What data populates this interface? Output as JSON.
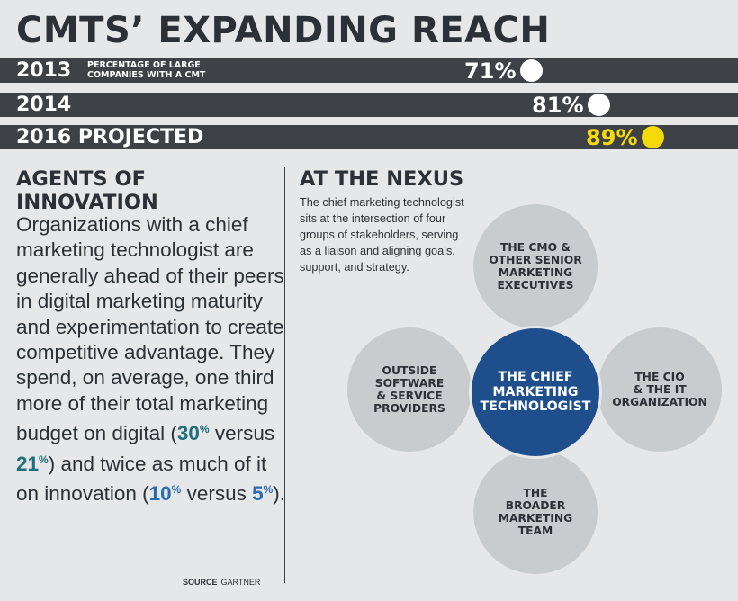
{
  "title": "CMTS’ EXPANDING REACH",
  "chart_data": {
    "type": "bar",
    "note": "PERCENTAGE OF LARGE COMPANIES WITH A CMT",
    "categories": [
      "2013",
      "2014",
      "2016 PROJECTED"
    ],
    "values": [
      71,
      81,
      89
    ],
    "value_labels": [
      "71%",
      "81%",
      "89%"
    ],
    "highlight_color": "#f5d90a",
    "marker_color": "#ffffff",
    "bar_color": "#3e4247"
  },
  "left": {
    "heading": "AGENTS OF INNOVATION",
    "body_1": "Organizations with a chief marketing technologist are generally ahead of their peers in digital marketing maturity and experimentation to create competitive advantage. They spend, on average, one third more of their total marketing budget on digital (",
    "stat_digital_cmt": "30",
    "connector_1": " versus ",
    "stat_digital_peers": "21",
    "body_2": ") and twice as much of it on innovation (",
    "stat_innov_cmt": "10",
    "connector_2": " versus ",
    "stat_innov_peers": "5",
    "body_3": ").",
    "percent_sign": "%"
  },
  "right": {
    "heading": "AT THE NEXUS",
    "body": "The chief marketing technologist sits at the intersection of four groups of stakeholders, serving as a liaison and aligning goals, support, and strategy.",
    "nodes": {
      "top": "THE CMO &\nOTHER SENIOR\nMARKETING\nEXECUTIVES",
      "left": "OUTSIDE\nSOFTWARE\n& SERVICE\nPROVIDERS",
      "center": "THE CHIEF\nMARKETING\nTECHNOLOGIST",
      "right": "THE CIO\n& THE IT\nORGANIZATION",
      "bottom": "THE\nBROADER\nMARKETING\nTEAM"
    }
  },
  "source": {
    "label": "SOURCE",
    "value": "GARTNER"
  },
  "colors": {
    "background": "#e6e7e8",
    "text": "#2b3136",
    "node_fill": "#c9cccf",
    "center_fill": "#1e4e8c",
    "teal": "#1f6f7e",
    "blue": "#2b6cb0"
  }
}
